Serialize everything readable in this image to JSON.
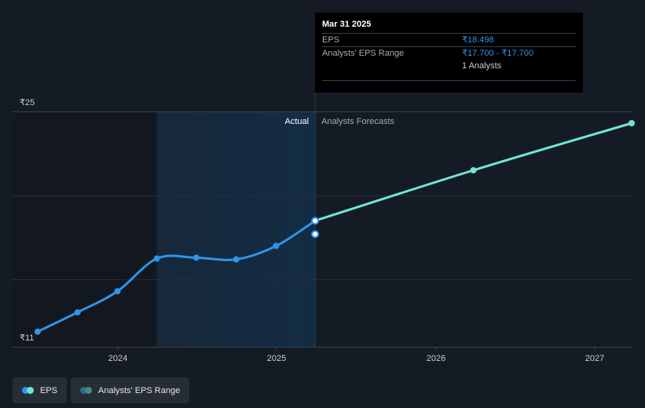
{
  "chart_data": {
    "type": "line",
    "y_axis": {
      "min": 11,
      "max": 25,
      "tick_labels": [
        "₹25",
        "₹11"
      ]
    },
    "x_axis": {
      "tick_labels": [
        "2024",
        "2025",
        "2026",
        "2027"
      ]
    },
    "region_labels": {
      "actual": "Actual",
      "forecast": "Analysts Forecasts"
    },
    "series": [
      {
        "name": "EPS",
        "color": "#2f94e8",
        "points": [
          [
            "2023-06-30",
            11.9
          ],
          [
            "2023-09-30",
            13.05
          ],
          [
            "2023-12-31",
            14.3
          ],
          [
            "2024-03-31",
            16.25
          ],
          [
            "2024-06-30",
            16.3
          ],
          [
            "2024-09-30",
            16.2
          ],
          [
            "2024-12-31",
            17.0
          ],
          [
            "2025-03-31",
            18.498
          ]
        ]
      },
      {
        "name": "EPS Forecast",
        "color": "#6ee7d4",
        "points": [
          [
            "2025-03-31",
            18.498
          ],
          [
            "2026-03-31",
            21.5
          ],
          [
            "2027-03-31",
            24.3
          ]
        ]
      }
    ],
    "range_point": {
      "date": "2025-03-31",
      "low": 17.7,
      "high": 17.7
    }
  },
  "tooltip": {
    "date": "Mar 31 2025",
    "eps_label": "EPS",
    "eps_value": "₹18.498",
    "range_label": "Analysts' EPS Range",
    "range_value": "₹17.700 - ₹17.700",
    "analysts": "1 Analysts"
  },
  "legend": {
    "eps": {
      "label": "EPS",
      "colors": [
        "#2f94e8",
        "#6ee7d4"
      ]
    },
    "range": {
      "label": "Analysts' EPS Range",
      "colors": [
        "#2b6f8f",
        "#3f8f7f"
      ]
    }
  }
}
